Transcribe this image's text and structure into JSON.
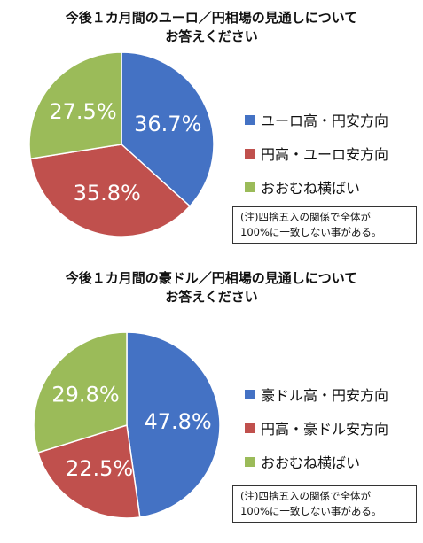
{
  "chart_data": [
    {
      "type": "pie",
      "title_lines": [
        "今後１カ月間のユーロ／円相場の見通しについて",
        "お答えください"
      ],
      "categories": [
        "ユーロ高・円安方向",
        "円高・ユーロ安方向",
        "おおむね横ばい"
      ],
      "values": [
        36.7,
        35.8,
        27.5
      ],
      "labels": [
        "36.7%",
        "35.8%",
        "27.5%"
      ],
      "colors": [
        "#4472C4",
        "#C0504D",
        "#9BBB59"
      ],
      "legend_position": "right",
      "note_lines": [
        "(注)四捨五入の関係で全体が",
        "100%に一致しない事がある。"
      ]
    },
    {
      "type": "pie",
      "title_lines": [
        "今後１カ月間の豪ドル／円相場の見通しについて",
        "お答えください"
      ],
      "categories": [
        "豪ドル高・円安方向",
        "円高・豪ドル安方向",
        "おおむね横ばい"
      ],
      "values": [
        47.8,
        22.5,
        29.8
      ],
      "labels": [
        "47.8%",
        "22.5%",
        "29.8%"
      ],
      "colors": [
        "#4472C4",
        "#C0504D",
        "#9BBB59"
      ],
      "legend_position": "right",
      "note_lines": [
        "(注)四捨五入の関係で全体が",
        "100%に一致しない事がある。"
      ]
    }
  ]
}
